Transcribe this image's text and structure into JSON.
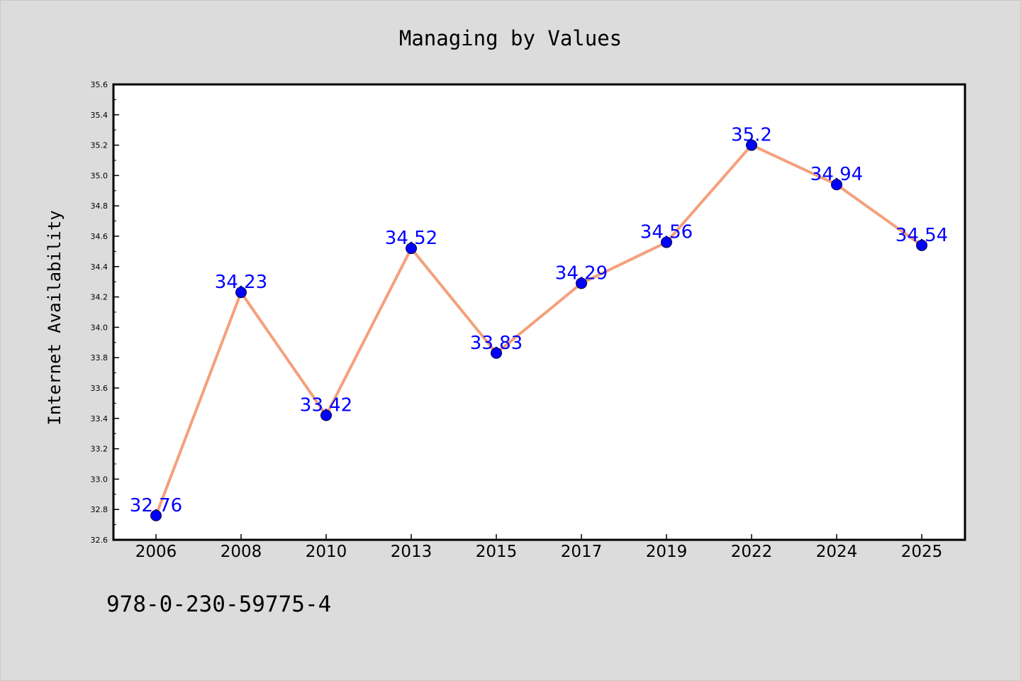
{
  "chart_data": {
    "type": "line",
    "title": "Managing by Values",
    "xlabel": "",
    "ylabel": "Internet Availability",
    "categories": [
      "2006",
      "2008",
      "2010",
      "2013",
      "2015",
      "2017",
      "2019",
      "2022",
      "2024",
      "2025"
    ],
    "values": [
      32.76,
      34.23,
      33.42,
      34.52,
      33.83,
      34.29,
      34.56,
      35.2,
      34.94,
      34.54
    ],
    "value_labels": [
      "32.76",
      "34.23",
      "33.42",
      "34.52",
      "33.83",
      "34.29",
      "34.56",
      "35.2",
      "34.94",
      "34.54"
    ],
    "ylim": [
      32.6,
      35.6
    ],
    "yticks": [
      "32.6",
      "32.8",
      "33.0",
      "33.2",
      "33.4",
      "33.6",
      "33.8",
      "34.0",
      "34.2",
      "34.4",
      "34.6",
      "34.8",
      "35.0",
      "35.2",
      "35.4",
      "35.6"
    ],
    "grid": false,
    "colors": {
      "line": "#f4a07c",
      "marker": "#0000ff",
      "label": "#0000ff",
      "background": "#dcdcdc",
      "plot_area": "#ffffff"
    }
  },
  "footnote": "978-0-230-59775-4"
}
